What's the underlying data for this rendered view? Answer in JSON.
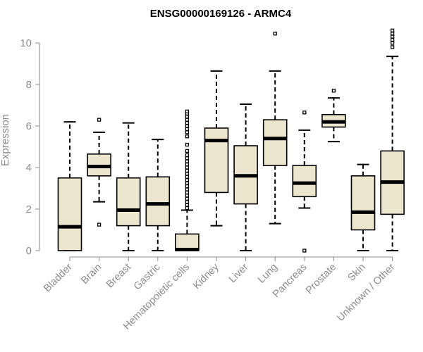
{
  "chart_data": {
    "type": "box",
    "title": "ENSG00000169126 - ARMC4",
    "xlabel": "",
    "ylabel": "Expression",
    "ylim": [
      0,
      10.6
    ],
    "yticks": [
      0,
      2,
      4,
      6,
      8,
      10
    ],
    "grid": false,
    "box_fill": "#ede6cf",
    "box_stroke": "#000000",
    "axis_color": "#8c8c8c",
    "categories": [
      "Bladder",
      "Brain",
      "Breast",
      "Gastric",
      "Hematopoietic cells",
      "Kidney",
      "Liver",
      "Lung",
      "Pancreas",
      "Prostate",
      "Skin",
      "Unknown / Other"
    ],
    "series": [
      {
        "category": "Bladder",
        "whisker_low": 0.0,
        "q1": 0.0,
        "median": 1.15,
        "q3": 3.5,
        "whisker_high": 6.2,
        "outliers": []
      },
      {
        "category": "Brain",
        "whisker_low": 2.35,
        "q1": 3.6,
        "median": 4.05,
        "q3": 4.65,
        "whisker_high": 5.7,
        "outliers": [
          6.3,
          1.25
        ]
      },
      {
        "category": "Breast",
        "whisker_low": 0.0,
        "q1": 1.2,
        "median": 1.95,
        "q3": 3.5,
        "whisker_high": 6.15,
        "outliers": []
      },
      {
        "category": "Gastric",
        "whisker_low": 0.0,
        "q1": 1.2,
        "median": 2.25,
        "q3": 3.55,
        "whisker_high": 5.35,
        "outliers": []
      },
      {
        "category": "Hematopoietic cells",
        "whisker_low": 0.0,
        "q1": 0.0,
        "median": 0.05,
        "q3": 0.8,
        "whisker_high": 1.95,
        "outliers": [
          2.05,
          2.2,
          2.35,
          2.5,
          2.65,
          2.8,
          2.95,
          3.1,
          3.25,
          3.4,
          3.55,
          3.7,
          3.85,
          4.0,
          4.15,
          4.3,
          4.45,
          4.6,
          4.8,
          5.1,
          5.5,
          5.7,
          5.85,
          6.0,
          6.15,
          6.3,
          6.45,
          6.6,
          6.7
        ]
      },
      {
        "category": "Kidney",
        "whisker_low": 1.2,
        "q1": 2.8,
        "median": 5.3,
        "q3": 5.9,
        "whisker_high": 8.65,
        "outliers": []
      },
      {
        "category": "Liver",
        "whisker_low": 0.0,
        "q1": 2.25,
        "median": 3.6,
        "q3": 5.05,
        "whisker_high": 7.05,
        "outliers": []
      },
      {
        "category": "Lung",
        "whisker_low": 1.3,
        "q1": 4.1,
        "median": 5.4,
        "q3": 6.3,
        "whisker_high": 8.65,
        "outliers": [
          10.45
        ]
      },
      {
        "category": "Pancreas",
        "whisker_low": 2.05,
        "q1": 2.6,
        "median": 3.25,
        "q3": 4.1,
        "whisker_high": 5.8,
        "outliers": [
          6.65,
          0.0
        ]
      },
      {
        "category": "Prostate",
        "whisker_low": 5.25,
        "q1": 5.95,
        "median": 6.2,
        "q3": 6.55,
        "whisker_high": 7.35,
        "outliers": [
          7.7
        ]
      },
      {
        "category": "Skin",
        "whisker_low": 0.0,
        "q1": 1.0,
        "median": 1.85,
        "q3": 3.6,
        "whisker_high": 4.15,
        "outliers": []
      },
      {
        "category": "Unknown / Other",
        "whisker_low": 0.0,
        "q1": 1.75,
        "median": 3.3,
        "q3": 4.8,
        "whisker_high": 9.35,
        "outliers": [
          9.8,
          10.0,
          10.15,
          10.3,
          10.45,
          10.6
        ]
      }
    ]
  }
}
